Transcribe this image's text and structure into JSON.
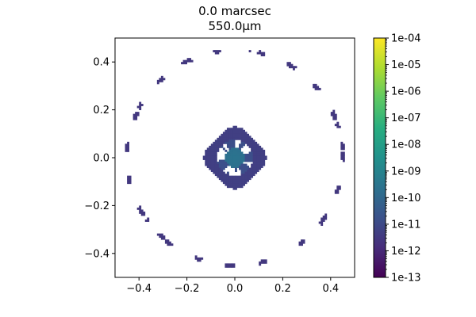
{
  "chart_data": {
    "type": "heatmap",
    "title_line1": "0.0 marcsec",
    "title_line2": "550.0μm",
    "xlabel": "",
    "ylabel": "",
    "xlim": [
      -0.5,
      0.5
    ],
    "ylim": [
      -0.5,
      0.5
    ],
    "x_ticks": [
      -0.4,
      -0.2,
      0.0,
      0.2,
      0.4
    ],
    "x_tick_labels": [
      "−0.4",
      "−0.2",
      "0.0",
      "0.2",
      "0.4"
    ],
    "y_ticks": [
      0.4,
      0.2,
      0.0,
      -0.2,
      -0.4
    ],
    "y_tick_labels": [
      "0.4",
      "0.2",
      "0.0",
      "−0.2",
      "−0.4"
    ],
    "colorscale": "viridis",
    "color_scale_type": "log",
    "colorbar_range": [
      1e-13,
      0.0001
    ],
    "colorbar_tick_values": [
      0.0001,
      1e-05,
      1e-06,
      1e-07,
      1e-08,
      1e-09,
      1e-10,
      1e-11,
      1e-12,
      1e-13
    ],
    "colorbar_tick_labels": [
      "1e-04",
      "1e-05",
      "1e-06",
      "1e-07",
      "1e-08",
      "1e-09",
      "1e-10",
      "1e-11",
      "1e-12",
      "1e-13"
    ],
    "features": {
      "core_value": 3e-10,
      "halo_value": 5e-12,
      "halo_radius": 0.12,
      "ring_radius": 0.45,
      "ring_value": 3e-12
    },
    "grid": false,
    "colors": {
      "viridis_dark": "#440154",
      "viridis_mid": "#21918c",
      "viridis_light": "#fde725"
    }
  }
}
